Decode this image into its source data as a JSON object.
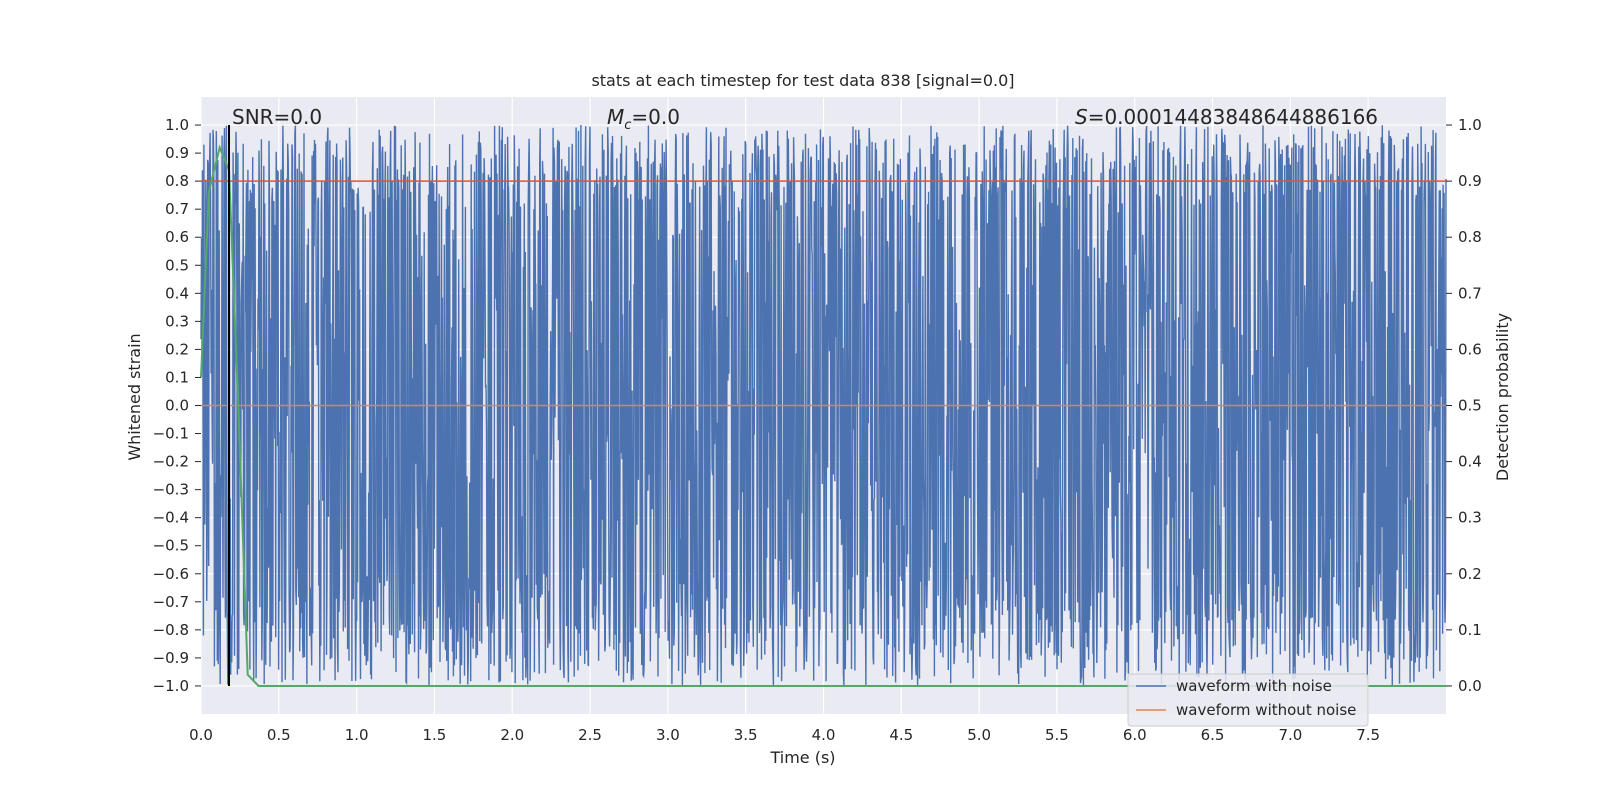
{
  "chart_data": {
    "type": "line",
    "title": "stats at each timestep for test data 838 [signal=0.0]",
    "xlabel": "Time (s)",
    "ylabel": "Whitened strain",
    "ylabel_right": "Detection probability",
    "xlim": [
      0.0,
      8.0
    ],
    "ylim": [
      -1.1,
      1.1
    ],
    "ylim_right": [
      -0.05,
      1.05
    ],
    "x_ticks": [
      "0.0",
      "0.5",
      "1.0",
      "1.5",
      "2.0",
      "2.5",
      "3.0",
      "3.5",
      "4.0",
      "4.5",
      "5.0",
      "5.5",
      "6.0",
      "6.5",
      "7.0",
      "7.5"
    ],
    "x_tick_values": [
      0.0,
      0.5,
      1.0,
      1.5,
      2.0,
      2.5,
      3.0,
      3.5,
      4.0,
      4.5,
      5.0,
      5.5,
      6.0,
      6.5,
      7.0,
      7.5
    ],
    "y_ticks": [
      "1.0",
      "0.9",
      "0.8",
      "0.7",
      "0.6",
      "0.5",
      "0.4",
      "0.3",
      "0.2",
      "0.1",
      "0.0",
      "−0.1",
      "−0.2",
      "−0.3",
      "−0.4",
      "−0.5",
      "−0.6",
      "−0.7",
      "−0.8",
      "−0.9",
      "−1.0"
    ],
    "y_tick_values": [
      1.0,
      0.9,
      0.8,
      0.7,
      0.6,
      0.5,
      0.4,
      0.3,
      0.2,
      0.1,
      0.0,
      -0.1,
      -0.2,
      -0.3,
      -0.4,
      -0.5,
      -0.6,
      -0.7,
      -0.8,
      -0.9,
      -1.0
    ],
    "y_ticks_right": [
      "1.0",
      "0.9",
      "0.8",
      "0.7",
      "0.6",
      "0.5",
      "0.4",
      "0.3",
      "0.2",
      "0.1",
      "0.0"
    ],
    "y_tick_values_right": [
      1.0,
      0.9,
      0.8,
      0.7,
      0.6,
      0.5,
      0.4,
      0.3,
      0.2,
      0.1,
      0.0
    ],
    "annotations": {
      "snr": "SNR=0.0",
      "mc_symbol": "M",
      "mc_sub": "c",
      "mc_value": "=0.0",
      "s_symbol": "S",
      "s_value": "=0.00014483848644886166"
    },
    "series": [
      {
        "name": "waveform with noise",
        "color": "#4c72b0",
        "description_range": [
          -1.0,
          1.0
        ],
        "noise_amplitude": 0.78
      },
      {
        "name": "waveform without noise",
        "color": "#dd8452",
        "values_constant": 0.0
      },
      {
        "color": "#55a868",
        "axis": "right",
        "x": [
          0.0,
          0.05,
          0.12,
          0.18,
          0.24,
          0.3,
          0.37,
          8.0
        ],
        "y": [
          0.55,
          0.88,
          0.96,
          0.92,
          0.5,
          0.02,
          0.0,
          0.0
        ]
      },
      {
        "color": "#dd5533",
        "axis": "right",
        "values_constant": 0.9
      }
    ],
    "vline_x": 0.18,
    "grid": true,
    "legend_placement": "lower-right",
    "colors": {
      "background": "#eaeaf2",
      "grid": "#ffffff",
      "noise": "#4c72b0",
      "clean": "#dd8452",
      "probability": "#55a868",
      "threshold": "#dd5533",
      "vline": "#000000"
    }
  }
}
